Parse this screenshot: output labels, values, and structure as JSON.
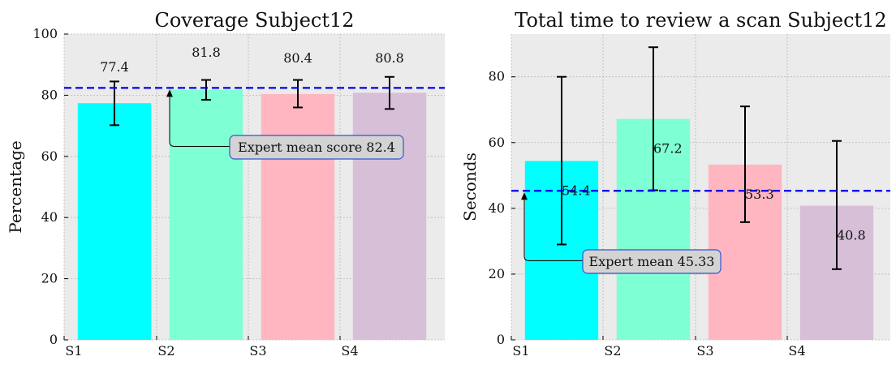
{
  "chart_data": [
    {
      "type": "bar",
      "title": "Coverage Subject12",
      "xlabel": "",
      "ylabel": "Percentage",
      "categories": [
        "S1",
        "S2",
        "S3",
        "S4"
      ],
      "values": [
        77.4,
        81.8,
        80.4,
        80.8
      ],
      "value_labels": [
        "77.4",
        "81.8",
        "80.4",
        "80.8"
      ],
      "error_low": [
        70.2,
        78.5,
        76.0,
        75.5
      ],
      "error_high": [
        84.5,
        85.0,
        85.0,
        86.0
      ],
      "colors": [
        "#00ffff",
        "#7fffd4",
        "#ffb6c1",
        "#d8bfd8"
      ],
      "ylim": [
        0,
        100
      ],
      "yticks": [
        0,
        20,
        40,
        60,
        80,
        100
      ],
      "grid": true,
      "reference_line": {
        "value": 82.4,
        "color": "#0000ee"
      },
      "annotation": {
        "text": "Expert mean score 82.4",
        "arrow_x": 1.0,
        "arrow_y": 82.4,
        "text_x": 1.65,
        "text_y": 63.5
      }
    },
    {
      "type": "bar",
      "title": "Total time to review a scan Subject12",
      "xlabel": "",
      "ylabel": "Seconds",
      "categories": [
        "S1",
        "S2",
        "S3",
        "S4"
      ],
      "values": [
        54.4,
        67.2,
        53.3,
        40.8
      ],
      "value_labels": [
        "54.4",
        "67.2",
        "53.3",
        "40.8"
      ],
      "error_low": [
        29.0,
        45.5,
        35.8,
        21.5
      ],
      "error_high": [
        80.0,
        89.0,
        71.0,
        60.5
      ],
      "colors": [
        "#00ffff",
        "#7fffd4",
        "#ffb6c1",
        "#d8bfd8"
      ],
      "ylim": [
        0,
        93
      ],
      "yticks": [
        0,
        20,
        40,
        60,
        80
      ],
      "grid": true,
      "reference_line": {
        "value": 45.33,
        "color": "#0000ee"
      },
      "annotation": {
        "text": "Expert mean 45.33",
        "arrow_x": 0.0,
        "arrow_y": 45.33,
        "text_x": 0.65,
        "text_y": 24.0
      }
    }
  ]
}
